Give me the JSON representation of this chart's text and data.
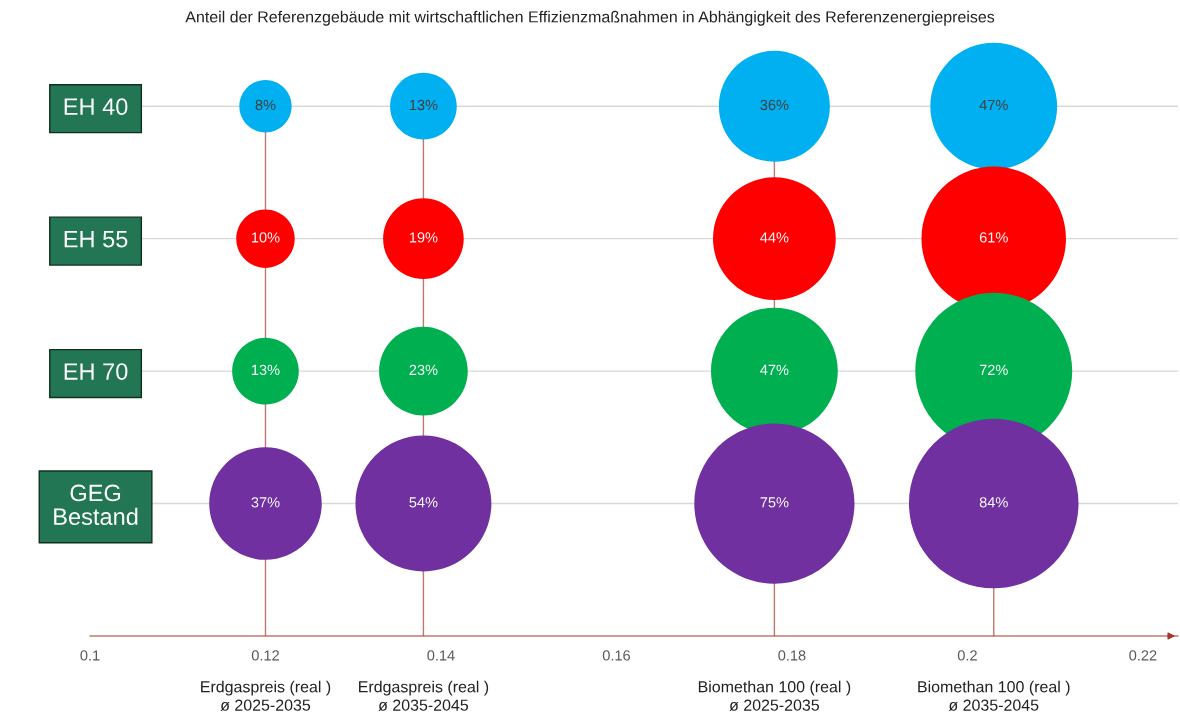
{
  "chart_data": {
    "type": "bubble",
    "orientation": "horizontal",
    "title": "Anteil der Referenzgebäude mit wirtschaftlichen Effizienzmaßnahmen in Abhängigkeit des Referenzenergiepreises",
    "categories": [
      "EH 40",
      "EH 55",
      "EH 70",
      "GEG\nBestand"
    ],
    "series": [
      {
        "colors": [
          "#00b0f0",
          "#ff0000",
          "#00b050",
          "#7030a0"
        ],
        "values": [
          0.12,
          0.12,
          0.12,
          0.12
        ],
        "sizes": [
          8,
          10,
          13,
          37
        ],
        "value_labels": [
          "8%",
          "10%",
          "13%",
          "37%"
        ]
      },
      {
        "colors": [
          "#00b0f0",
          "#ff0000",
          "#00b050",
          "#7030a0"
        ],
        "values": [
          0.138,
          0.138,
          0.138,
          0.138
        ],
        "sizes": [
          13,
          19,
          23,
          54
        ],
        "value_labels": [
          "13%",
          "19%",
          "23%",
          "54%"
        ]
      },
      {
        "colors": [
          "#00b0f0",
          "#ff0000",
          "#00b050",
          "#7030a0"
        ],
        "values": [
          0.178,
          0.178,
          0.178,
          0.178
        ],
        "sizes": [
          36,
          44,
          47,
          75
        ],
        "value_labels": [
          "36%",
          "44%",
          "47%",
          "75%"
        ]
      },
      {
        "colors": [
          "#00b0f0",
          "#ff0000",
          "#00b050",
          "#7030a0"
        ],
        "values": [
          0.203,
          0.203,
          0.203,
          0.203
        ],
        "sizes": [
          47,
          61,
          72,
          84
        ],
        "value_labels": [
          "47%",
          "61%",
          "72%",
          "84%"
        ]
      }
    ],
    "ref_lines": [
      {
        "axis": "x",
        "value": 0.12,
        "color": "#c0786e"
      },
      {
        "axis": "x",
        "value": 0.138,
        "color": "#c0786e"
      },
      {
        "axis": "x",
        "value": 0.178,
        "color": "#c0786e"
      },
      {
        "axis": "x",
        "value": 0.203,
        "color": "#c0786e"
      }
    ],
    "xlim": [
      0.1,
      0.224
    ],
    "xticks": [
      0.1,
      0.12,
      0.14,
      0.16,
      0.18,
      {
        "value": 0.2,
        "label": "0.2"
      },
      0.22
    ],
    "grid": "y",
    "legend": false,
    "annotations": [
      "Erdgaspreis (real )\nø 2025-2035",
      "Erdgaspreis (real )\nø 2035-2045",
      "Biomethan 100 (real )\nø 2025-2035",
      "Biomethan 100 (real )\nø 2035-2045"
    ]
  }
}
